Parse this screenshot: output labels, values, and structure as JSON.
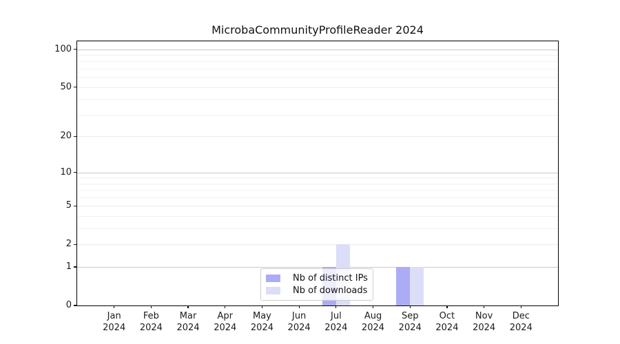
{
  "chart_data": {
    "type": "bar",
    "title": "MicrobaCommunityProfileReader 2024",
    "categories": [
      "Jan",
      "Feb",
      "Mar",
      "Apr",
      "May",
      "Jun",
      "Jul",
      "Aug",
      "Sep",
      "Oct",
      "Nov",
      "Dec"
    ],
    "x_year_label": "2024",
    "series": [
      {
        "name": "Nb of distinct IPs",
        "color": "#abacf5",
        "values": [
          0,
          0,
          0,
          0,
          0,
          0,
          1,
          0,
          1,
          0,
          0,
          0
        ]
      },
      {
        "name": "Nb of downloads",
        "color": "#dcddf8",
        "values": [
          0,
          0,
          0,
          0,
          0,
          0,
          2,
          0,
          1,
          0,
          0,
          0
        ]
      }
    ],
    "y_axis": {
      "scale": "log1p",
      "max": 115.7,
      "ticks": [
        0,
        1,
        2,
        5,
        10,
        20,
        50,
        100
      ],
      "decade_gridlines": [
        1,
        10,
        100
      ],
      "sub_gridlines": [
        2,
        5,
        20,
        50
      ],
      "minor_gridlines": [
        3,
        4,
        6,
        7,
        8,
        9,
        30,
        40,
        60,
        70,
        80,
        90
      ]
    },
    "legend": {
      "position": "lower center"
    },
    "grid": true,
    "colors": {
      "grid_decade": "#c8c8c8",
      "grid_sub": "#ececec",
      "grid_minor": "#f2f2f2",
      "axis": "#111111",
      "legend_border": "#cccccc"
    }
  }
}
